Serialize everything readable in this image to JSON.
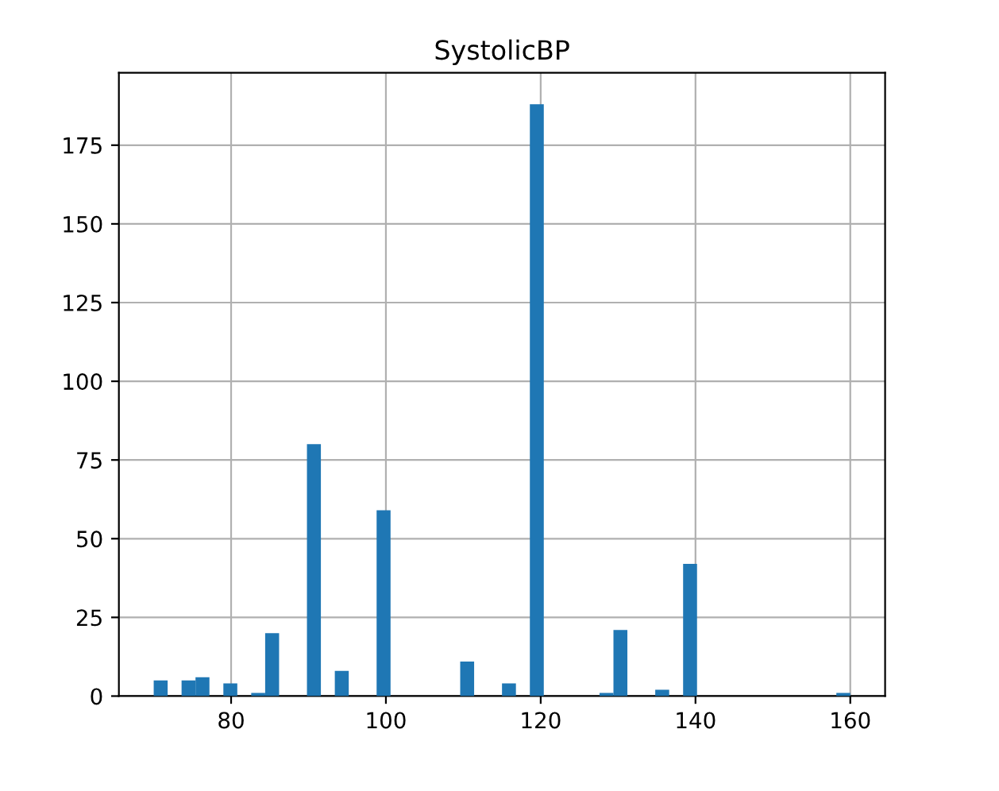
{
  "chart_data": {
    "type": "histogram",
    "title": "SystolicBP",
    "bins": [
      70.0,
      71.8,
      73.6,
      75.4,
      77.2,
      79.0,
      80.8,
      82.6,
      84.4,
      86.2,
      88.0,
      89.8,
      91.6,
      93.4,
      95.2,
      97.0,
      98.8,
      100.6,
      102.4,
      104.2,
      106.0,
      107.8,
      109.6,
      111.4,
      113.2,
      115.0,
      116.8,
      118.6,
      120.4,
      122.2,
      124.0,
      125.8,
      127.6,
      129.4,
      131.2,
      133.0,
      134.8,
      136.6,
      138.4,
      140.2,
      142.0,
      143.8,
      145.6,
      147.4,
      149.2,
      151.0,
      152.8,
      154.6,
      156.4,
      158.2,
      160.0
    ],
    "values": [
      5,
      0,
      5,
      6,
      0,
      4,
      0,
      1,
      20,
      0,
      0,
      80,
      0,
      8,
      0,
      0,
      59,
      0,
      0,
      0,
      0,
      0,
      11,
      0,
      0,
      4,
      0,
      188,
      0,
      0,
      0,
      0,
      1,
      21,
      0,
      0,
      2,
      0,
      42,
      0,
      0,
      0,
      0,
      0,
      0,
      0,
      0,
      0,
      0,
      1
    ],
    "color": "#1f77b4",
    "xlim": [
      65.5,
      164.5
    ],
    "ylim": [
      0,
      198
    ],
    "xticks": [
      80,
      100,
      120,
      140,
      160
    ],
    "yticks": [
      0,
      25,
      50,
      75,
      100,
      125,
      150,
      175
    ],
    "grid": true
  }
}
